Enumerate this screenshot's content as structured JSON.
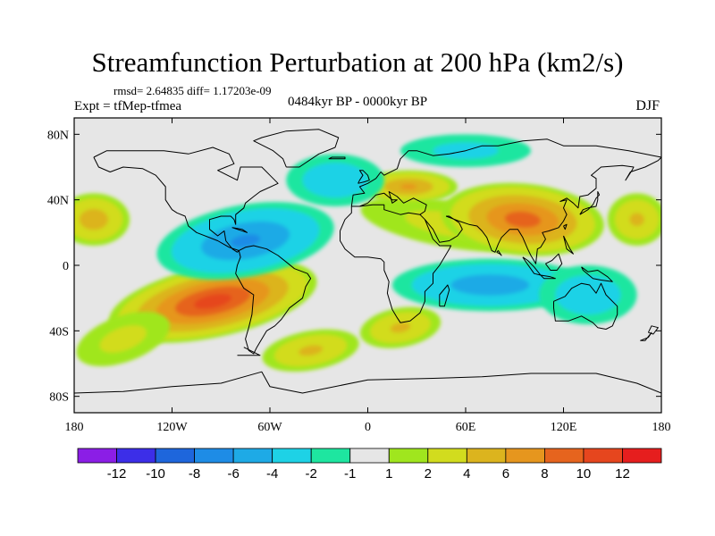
{
  "title": "Streamfunction Perturbation at 200 hPa (km2/s)",
  "stats": "rmsd= 2.64835 diff= 1.17203e-09",
  "experiment": "Expt = tfMep-tfmea",
  "period": "0484kyr BP - 0000kyr BP",
  "season": "DJF",
  "map": {
    "projection": "cylindrical equidistant",
    "lon_range": [
      -180,
      180
    ],
    "lat_range": [
      -90,
      90
    ],
    "x_ticks": [
      {
        "lon": -180,
        "label": "180"
      },
      {
        "lon": -120,
        "label": "120W"
      },
      {
        "lon": -60,
        "label": "60W"
      },
      {
        "lon": 0,
        "label": "0"
      },
      {
        "lon": 60,
        "label": "60E"
      },
      {
        "lon": 120,
        "label": "120E"
      },
      {
        "lon": 180,
        "label": "180"
      }
    ],
    "y_ticks": [
      {
        "lat": 80,
        "label": "80N"
      },
      {
        "lat": 40,
        "label": "40N"
      },
      {
        "lat": 0,
        "label": "0"
      },
      {
        "lat": -40,
        "label": "40S"
      },
      {
        "lat": -80,
        "label": "80S"
      }
    ],
    "background_color": "#e6e6e6",
    "anomalies": [
      {
        "name": "south-america-high",
        "lon": -95,
        "lat": -22,
        "rx": 65,
        "ry": 22,
        "rot": -12,
        "value": 11
      },
      {
        "name": "south-atlantic-ridge",
        "lon": -35,
        "lat": -52,
        "rx": 30,
        "ry": 12,
        "rot": -10,
        "value": 4
      },
      {
        "name": "south-pacific-band",
        "lon": -150,
        "lat": -45,
        "rx": 30,
        "ry": 14,
        "rot": -20,
        "value": 2
      },
      {
        "name": "north-pacific-east",
        "lon": -168,
        "lat": 28,
        "rx": 22,
        "ry": 16,
        "rot": 0,
        "value": 5
      },
      {
        "name": "north-pacific-west",
        "lon": 165,
        "lat": 28,
        "rx": 18,
        "ry": 16,
        "rot": 0,
        "value": 4
      },
      {
        "name": "arabian-band",
        "lon": 50,
        "lat": 25,
        "rx": 55,
        "ry": 14,
        "rot": 10,
        "value": 2
      },
      {
        "name": "south-asia-high",
        "lon": 95,
        "lat": 28,
        "rx": 50,
        "ry": 22,
        "rot": 5,
        "value": 9
      },
      {
        "name": "mediterranean-high",
        "lon": 25,
        "lat": 48,
        "rx": 30,
        "ry": 10,
        "rot": 0,
        "value": 6
      },
      {
        "name": "indian-ocean-south",
        "lon": 20,
        "lat": -38,
        "rx": 25,
        "ry": 12,
        "rot": -10,
        "value": 4
      },
      {
        "name": "north-america-low",
        "lon": -75,
        "lat": 15,
        "rx": 55,
        "ry": 22,
        "rot": -10,
        "value": -6
      },
      {
        "name": "north-atlantic-low",
        "lon": -20,
        "lat": 52,
        "rx": 30,
        "ry": 16,
        "rot": 0,
        "value": -3
      },
      {
        "name": "indian-ocean-low",
        "lon": 75,
        "lat": -12,
        "rx": 60,
        "ry": 16,
        "rot": 0,
        "value": -5
      },
      {
        "name": "australia-low",
        "lon": 135,
        "lat": -18,
        "rx": 30,
        "ry": 18,
        "rot": 0,
        "value": -3
      },
      {
        "name": "arctic-low",
        "lon": 60,
        "lat": 70,
        "rx": 40,
        "ry": 10,
        "rot": 0,
        "value": -2
      }
    ]
  },
  "colorbar": {
    "colors": [
      "#8b1ee6",
      "#3c2ee8",
      "#1e66dc",
      "#1e8ce6",
      "#1eaae6",
      "#1ed2e6",
      "#1ee6a0",
      "#e6e6e6",
      "#a0e61e",
      "#d2dc1e",
      "#dcb41e",
      "#e6961e",
      "#e6641e",
      "#e6461e",
      "#e61e1e"
    ],
    "labels": [
      "-12",
      "-10",
      "-8",
      "-6",
      "-4",
      "-2",
      "-1",
      "1",
      "2",
      "4",
      "6",
      "8",
      "10",
      "12"
    ]
  }
}
